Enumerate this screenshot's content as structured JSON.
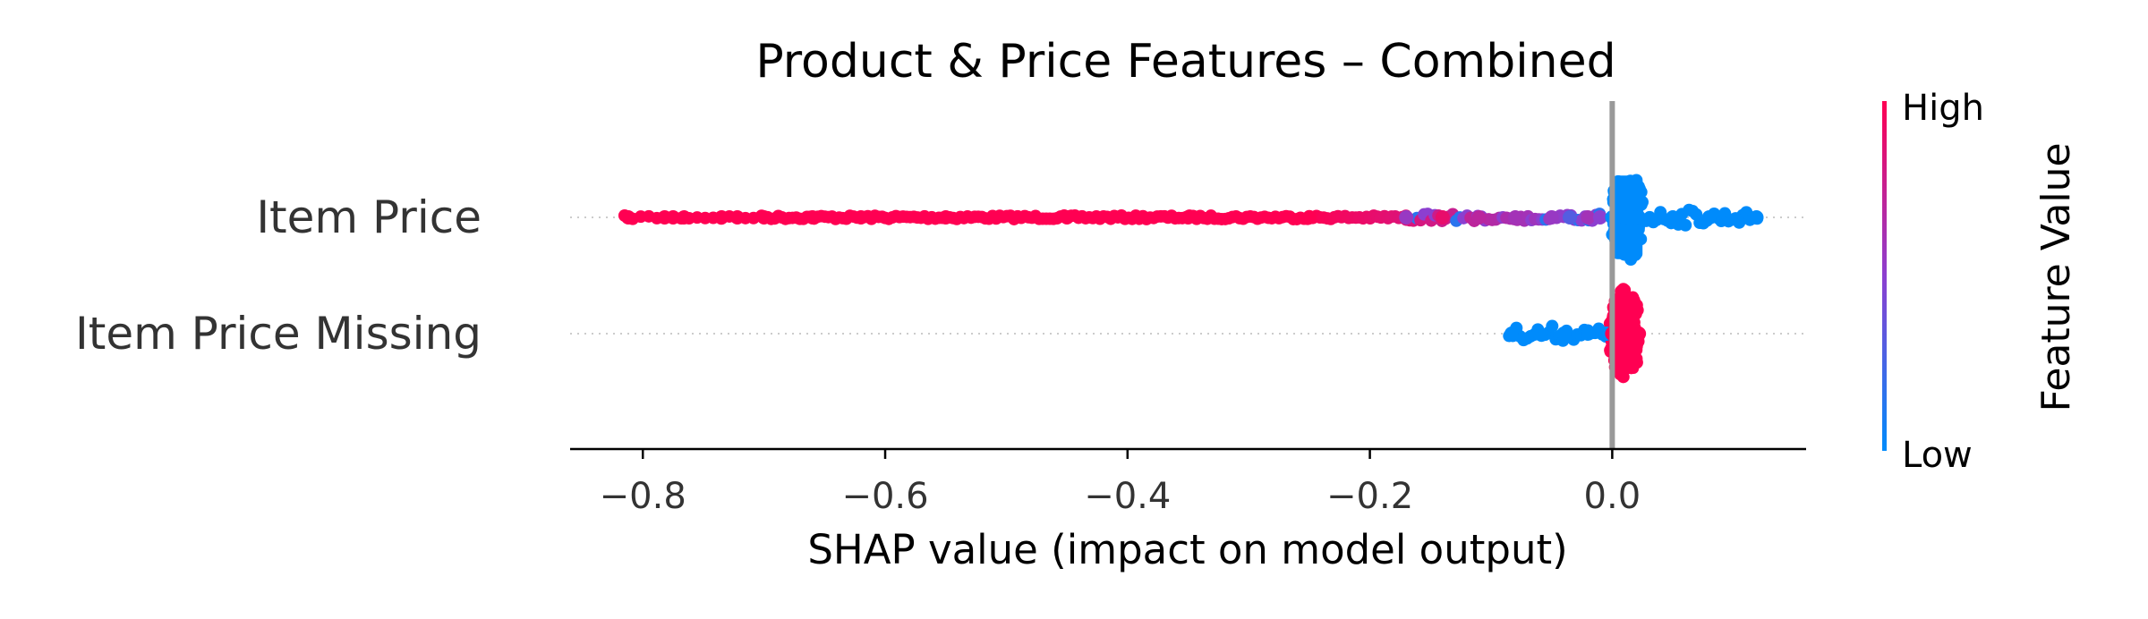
{
  "chart_data": {
    "type": "scatter",
    "subtype": "shap-beeswarm",
    "title": "Product & Price Features – Combined",
    "xlabel": "SHAP value (impact on model output)",
    "xlim": [
      -0.86,
      0.16
    ],
    "xticks": [
      -0.8,
      -0.6,
      -0.4,
      -0.2,
      0.0
    ],
    "xtick_labels": [
      "−0.8",
      "−0.6",
      "−0.4",
      "−0.2",
      "0.0"
    ],
    "features": [
      {
        "name": "Item Price",
        "samples": [
          {
            "x": -0.812,
            "c": 1.0
          },
          {
            "x": -0.782,
            "c": 1.0
          },
          {
            "x": -0.775,
            "c": 1.0
          },
          {
            "x": -0.766,
            "c": 1.0
          },
          {
            "x": -0.735,
            "c": 1.0
          },
          {
            "x": -0.722,
            "c": 1.0
          },
          {
            "x": -0.7,
            "c": 1.0
          },
          {
            "x": -0.66,
            "c": 1.0
          },
          {
            "x": -0.62,
            "c": 1.0
          },
          {
            "x": -0.55,
            "c": 1.0
          },
          {
            "x": -0.45,
            "c": 1.0
          },
          {
            "x": -0.35,
            "c": 1.0
          },
          {
            "x": -0.25,
            "c": 1.0
          },
          {
            "x": -0.17,
            "c": 0.55
          },
          {
            "x": -0.14,
            "c": 0.9
          },
          {
            "x": -0.11,
            "c": 0.7
          },
          {
            "x": -0.08,
            "c": 0.6
          },
          {
            "x": -0.05,
            "c": 0.55
          },
          {
            "x": -0.035,
            "c": 0.3
          },
          {
            "x": -0.02,
            "c": 0.6
          },
          {
            "x": -0.01,
            "c": 0.5
          },
          {
            "x": 0.0,
            "c": 0.0
          },
          {
            "x": 0.01,
            "c": 0.0
          },
          {
            "x": 0.02,
            "c": 0.0
          },
          {
            "x": 0.05,
            "c": 0.0
          },
          {
            "x": 0.08,
            "c": 0.0
          },
          {
            "x": 0.119,
            "c": 0.0
          }
        ],
        "segments": [
          {
            "x0": -0.815,
            "x1": -0.7,
            "c0": 1.0,
            "c1": 1.0,
            "density": "sparse"
          },
          {
            "x0": -0.7,
            "x1": -0.6,
            "c0": 1.0,
            "c1": 1.0,
            "density": "dense"
          },
          {
            "x0": -0.6,
            "x1": -0.25,
            "c0": 1.0,
            "c1": 1.0,
            "density": "dense"
          },
          {
            "x0": -0.25,
            "x1": -0.17,
            "c0": 1.0,
            "c1": 0.85,
            "density": "dense"
          },
          {
            "x0": -0.17,
            "x1": -0.01,
            "c0": 0.85,
            "c1": 0.45,
            "density": "mixed"
          },
          {
            "x0": 0.0,
            "x1": 0.025,
            "c0": 0.0,
            "c1": 0.0,
            "density": "pile"
          },
          {
            "x0": 0.025,
            "x1": 0.12,
            "c0": 0.0,
            "c1": 0.0,
            "density": "tail"
          }
        ]
      },
      {
        "name": "Item Price Missing",
        "samples": [
          {
            "x": -0.083,
            "c": 0.0
          },
          {
            "x": -0.06,
            "c": 0.0
          },
          {
            "x": -0.04,
            "c": 0.0
          },
          {
            "x": -0.02,
            "c": 0.0
          },
          {
            "x": -0.005,
            "c": 0.0
          },
          {
            "x": 0.0,
            "c": 1.0
          },
          {
            "x": 0.008,
            "c": 1.0
          },
          {
            "x": 0.015,
            "c": 1.0
          },
          {
            "x": 0.022,
            "c": 1.0
          }
        ],
        "segments": [
          {
            "x0": -0.085,
            "x1": -0.002,
            "c0": 0.0,
            "c1": 0.0,
            "density": "tail"
          },
          {
            "x0": -0.002,
            "x1": 0.022,
            "c0": 1.0,
            "c1": 1.0,
            "density": "pile"
          }
        ]
      }
    ],
    "colorbar": {
      "label": "Feature Value",
      "high_label": "High",
      "low_label": "Low",
      "high_color": "#ff0052",
      "low_color": "#008bfb"
    },
    "zero_line_color": "#999999",
    "grid": false,
    "legend": "colorbar-right"
  }
}
